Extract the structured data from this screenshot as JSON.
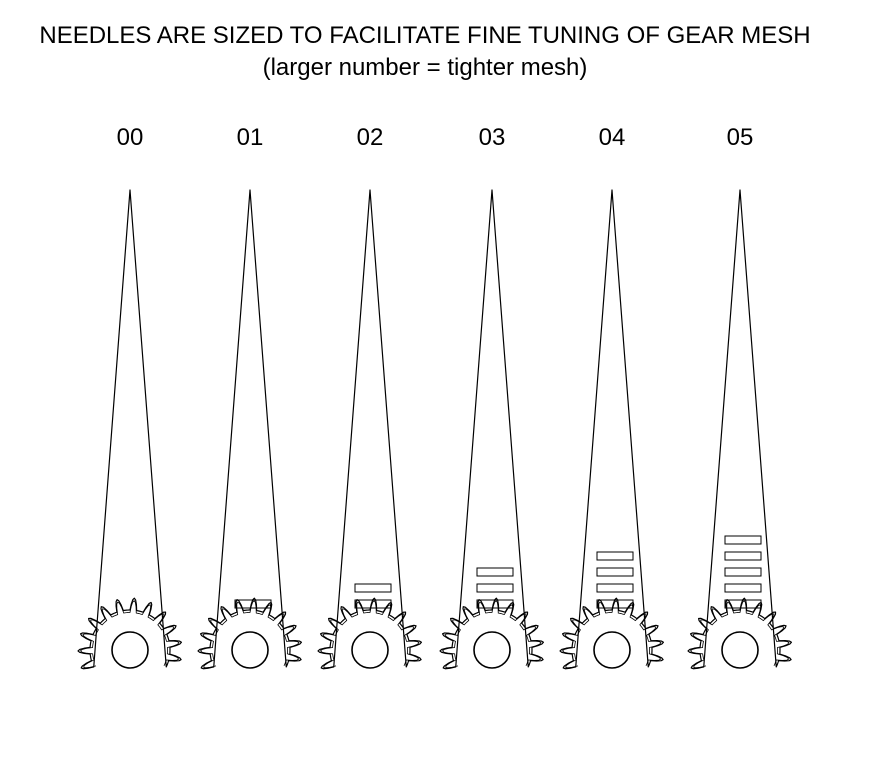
{
  "header": {
    "title": "NEEDLES ARE SIZED TO FACILITATE FINE TUNING OF GEAR MESH",
    "subtitle": "(larger number = tighter mesh)"
  },
  "needles": [
    {
      "label": "00",
      "marks": 0
    },
    {
      "label": "01",
      "marks": 1
    },
    {
      "label": "02",
      "marks": 2
    },
    {
      "label": "03",
      "marks": 3
    },
    {
      "label": "04",
      "marks": 4
    },
    {
      "label": "05",
      "marks": 5
    }
  ],
  "colors": {
    "stroke": "#000000",
    "background": "#ffffff"
  }
}
